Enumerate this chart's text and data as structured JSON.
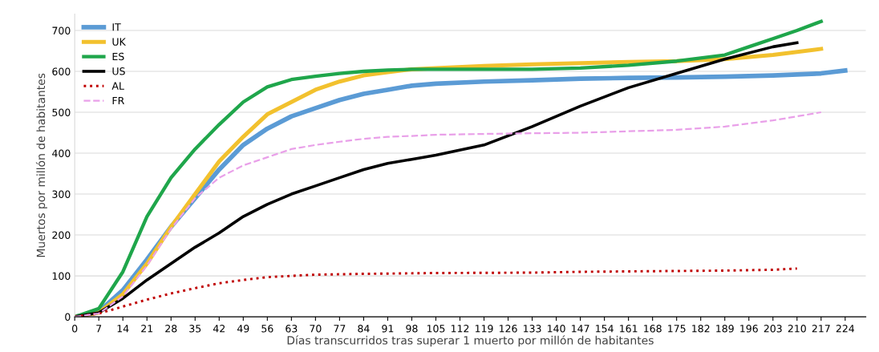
{
  "chart_data": {
    "type": "line",
    "xlabel": "Días transcurridos tras superar 1 muerto por millón de habitantes",
    "ylabel": "Muertos por millón de habitantes",
    "xlim": [
      0,
      230
    ],
    "xticks": [
      0,
      7,
      14,
      21,
      28,
      35,
      42,
      49,
      56,
      63,
      70,
      77,
      84,
      91,
      98,
      105,
      112,
      119,
      126,
      133,
      140,
      147,
      154,
      161,
      168,
      175,
      182,
      189,
      196,
      203,
      210,
      217,
      224
    ],
    "ylim": [
      0,
      740
    ],
    "yticks": [
      0,
      100,
      200,
      300,
      400,
      500,
      600,
      700
    ],
    "grid": "y",
    "legend": "top left",
    "series": [
      {
        "name": "IT",
        "color": "#5b9bd5",
        "line_style": "solid",
        "x": [
          0,
          7,
          14,
          21,
          28,
          35,
          42,
          49,
          56,
          63,
          70,
          77,
          84,
          91,
          98,
          105,
          119,
          133,
          147,
          161,
          175,
          189,
          203,
          217,
          224
        ],
        "values": [
          0,
          12,
          65,
          140,
          220,
          290,
          360,
          420,
          460,
          490,
          510,
          530,
          545,
          555,
          565,
          570,
          575,
          578,
          582,
          584,
          585,
          587,
          590,
          595,
          602
        ]
      },
      {
        "name": "UK",
        "color": "#f2c12e",
        "line_style": "solid",
        "x": [
          0,
          7,
          14,
          21,
          28,
          35,
          42,
          49,
          56,
          63,
          70,
          77,
          84,
          91,
          98,
          105,
          119,
          133,
          147,
          161,
          175,
          189,
          203,
          217
        ],
        "values": [
          0,
          10,
          55,
          130,
          220,
          300,
          380,
          440,
          495,
          525,
          555,
          575,
          590,
          598,
          605,
          608,
          613,
          617,
          620,
          623,
          625,
          630,
          640,
          655
        ]
      },
      {
        "name": "ES",
        "color": "#1fa64b",
        "line_style": "solid",
        "x": [
          0,
          7,
          14,
          21,
          28,
          35,
          42,
          49,
          56,
          63,
          70,
          77,
          84,
          91,
          98,
          105,
          119,
          133,
          147,
          161,
          175,
          189,
          196,
          203,
          210,
          217
        ],
        "values": [
          0,
          20,
          110,
          245,
          340,
          410,
          470,
          525,
          562,
          580,
          588,
          595,
          600,
          603,
          605,
          605,
          605,
          605,
          608,
          615,
          625,
          640,
          660,
          680,
          700,
          722
        ]
      },
      {
        "name": "US",
        "color": "#000000",
        "line_style": "solid",
        "x": [
          0,
          7,
          14,
          21,
          28,
          35,
          42,
          49,
          56,
          63,
          70,
          77,
          84,
          91,
          98,
          105,
          119,
          133,
          147,
          161,
          175,
          189,
          203,
          210
        ],
        "values": [
          0,
          10,
          45,
          90,
          130,
          170,
          205,
          245,
          275,
          300,
          320,
          340,
          360,
          375,
          385,
          395,
          420,
          465,
          515,
          560,
          595,
          630,
          660,
          670
        ]
      },
      {
        "name": "AL",
        "color": "#c00000",
        "line_style": "dotted",
        "x": [
          0,
          7,
          14,
          21,
          28,
          35,
          42,
          49,
          56,
          63,
          70,
          77,
          84,
          105,
          133,
          147,
          189,
          203,
          210
        ],
        "values": [
          0,
          8,
          25,
          42,
          57,
          70,
          82,
          90,
          97,
          100,
          103,
          104,
          105,
          107,
          108,
          110,
          113,
          115,
          118
        ]
      },
      {
        "name": "FR",
        "color": "#e9a0e9",
        "line_style": "dashed",
        "x": [
          0,
          7,
          14,
          21,
          28,
          35,
          42,
          49,
          56,
          63,
          70,
          77,
          84,
          91,
          98,
          105,
          126,
          147,
          175,
          189,
          203,
          217
        ],
        "values": [
          0,
          8,
          50,
          125,
          215,
          290,
          340,
          370,
          390,
          410,
          420,
          428,
          435,
          440,
          442,
          445,
          448,
          450,
          457,
          465,
          480,
          500
        ]
      }
    ]
  }
}
